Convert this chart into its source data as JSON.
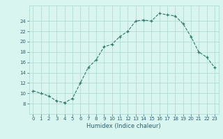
{
  "x": [
    0,
    1,
    2,
    3,
    4,
    5,
    6,
    7,
    8,
    9,
    10,
    11,
    12,
    13,
    14,
    15,
    16,
    17,
    18,
    19,
    20,
    21,
    22,
    23
  ],
  "y": [
    10.5,
    10.0,
    9.5,
    8.5,
    8.2,
    9.0,
    12.0,
    15.0,
    16.5,
    19.0,
    19.5,
    21.0,
    22.0,
    24.0,
    24.2,
    24.0,
    25.5,
    25.2,
    25.0,
    23.5,
    21.0,
    18.0,
    17.0,
    15.0
  ],
  "xlabel": "Humidex (Indice chaleur)",
  "ylabel": "",
  "xlim": [
    -0.5,
    23.5
  ],
  "ylim": [
    6,
    27
  ],
  "yticks": [
    8,
    10,
    12,
    14,
    16,
    18,
    20,
    22,
    24
  ],
  "xticks": [
    0,
    1,
    2,
    3,
    4,
    5,
    6,
    7,
    8,
    9,
    10,
    11,
    12,
    13,
    14,
    15,
    16,
    17,
    18,
    19,
    20,
    21,
    22,
    23
  ],
  "line_color": "#2d7a6a",
  "marker": "+",
  "bg_color": "#d8f5f0",
  "grid_color": "#aad8d0",
  "label_color": "#2c5f6e"
}
